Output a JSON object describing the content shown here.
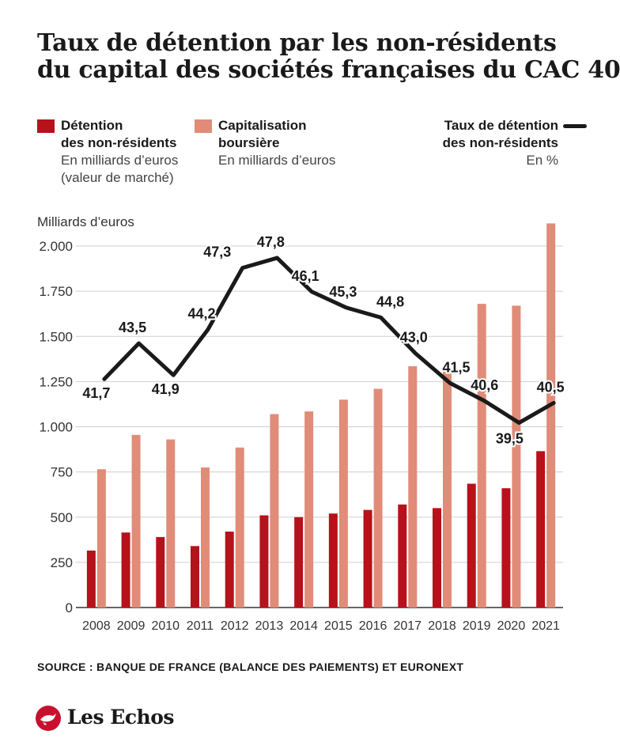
{
  "title": {
    "line1": "Taux de détention par les non-résidents",
    "line2": "du capital des sociétés françaises du CAC 40"
  },
  "legend": {
    "detention": {
      "label1": "Détention",
      "label2": "des non-résidents",
      "sub1": "En milliards d’euros",
      "sub2": "(valeur de marché)"
    },
    "capitalisation": {
      "label1": "Capitalisation",
      "label2": "boursière",
      "sub1": "En milliards d’euros"
    },
    "taux": {
      "label1": "Taux de détention",
      "label2": "des non-résidents",
      "sub1": "En %"
    }
  },
  "source": "SOURCE : BANQUE DE FRANCE (BALANCE DES PAIEMENTS) ET EURONEXT",
  "brand": "Les Echos",
  "colors": {
    "detention": "#b5121b",
    "capitalisation": "#e08c78",
    "taux": "#1a1a1a"
  },
  "chart_data": {
    "type": "bar",
    "ylabel": "Milliards d’euros",
    "ylim": [
      0,
      2000
    ],
    "yticks": [
      0,
      250,
      500,
      750,
      1000,
      1250,
      1500,
      1750,
      2000
    ],
    "ytick_labels": [
      "0",
      "250",
      "500",
      "750",
      "1.000",
      "1.250",
      "1.500",
      "1.750",
      "2.000"
    ],
    "categories": [
      "2008",
      "2009",
      "2010",
      "2011",
      "2012",
      "2013",
      "2014",
      "2015",
      "2016",
      "2017",
      "2018",
      "2019",
      "2020",
      "2021"
    ],
    "series": [
      {
        "name": "Détention des non-résidents",
        "values": [
          315,
          415,
          390,
          340,
          420,
          510,
          500,
          520,
          540,
          570,
          550,
          685,
          660,
          865
        ]
      },
      {
        "name": "Capitalisation boursière",
        "values": [
          765,
          955,
          930,
          775,
          885,
          1070,
          1085,
          1150,
          1210,
          1335,
          1320,
          1680,
          1670,
          2125
        ]
      }
    ],
    "line_series": {
      "name": "Taux de détention des non-résidents",
      "unit": "En %",
      "values": [
        41.7,
        43.5,
        41.9,
        44.2,
        47.3,
        47.8,
        46.1,
        45.3,
        44.8,
        43.0,
        41.5,
        40.6,
        39.5,
        40.5
      ],
      "labels": [
        "41,7",
        "43,5",
        "41,9",
        "44,2",
        "47,3",
        "47,8",
        "46,1",
        "45,3",
        "44,8",
        "43,0",
        "41,5",
        "40,6",
        "39,5",
        "40,5"
      ]
    }
  }
}
